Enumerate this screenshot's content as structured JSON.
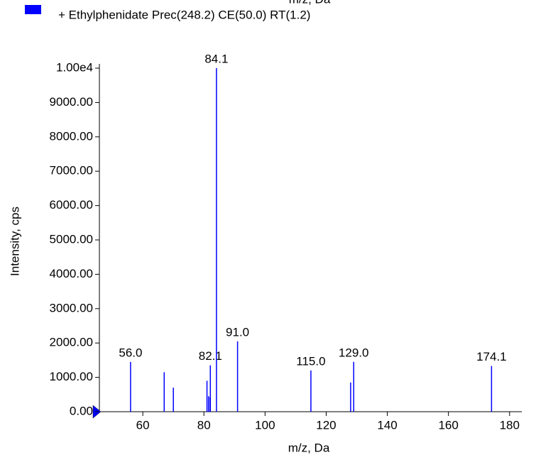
{
  "chart_data": {
    "type": "stick",
    "top_label": "m/z, Da",
    "xlabel": "m/z, Da",
    "ylabel": "Intensity, cps",
    "xlim": [
      45.8,
      184
    ],
    "ylim": [
      0,
      10000
    ],
    "xticks": [
      60,
      80,
      100,
      120,
      140,
      160,
      180
    ],
    "yticks": [
      {
        "value": 0,
        "label": "0.00"
      },
      {
        "value": 1000,
        "label": "1000.00"
      },
      {
        "value": 2000,
        "label": "2000.00"
      },
      {
        "value": 3000,
        "label": "3000.00"
      },
      {
        "value": 4000,
        "label": "4000.00"
      },
      {
        "value": 5000,
        "label": "5000.00"
      },
      {
        "value": 6000,
        "label": "6000.00"
      },
      {
        "value": 7000,
        "label": "7000.00"
      },
      {
        "value": 8000,
        "label": "8000.00"
      },
      {
        "value": 9000,
        "label": "9000.00"
      },
      {
        "value": 10000,
        "label": "1.00e4"
      }
    ],
    "series": [
      {
        "name": "+ Ethylphenidate Prec(248.2) CE(50.0) RT(1.2)",
        "color": "#0000ff",
        "x": [
          56.0,
          67.0,
          70.0,
          81.0,
          81.5,
          82.0,
          82.1,
          84.1,
          91.0,
          115.0,
          128.0,
          129.0,
          174.1
        ],
        "values": [
          1450,
          1150,
          700,
          900,
          450,
          420,
          1350,
          10000,
          2050,
          1200,
          850,
          1450,
          1330
        ],
        "labels": [
          "56.0",
          null,
          null,
          null,
          null,
          null,
          "82.1",
          "84.1",
          "91.0",
          "115.0",
          null,
          "129.0",
          "174.1"
        ]
      }
    ]
  }
}
